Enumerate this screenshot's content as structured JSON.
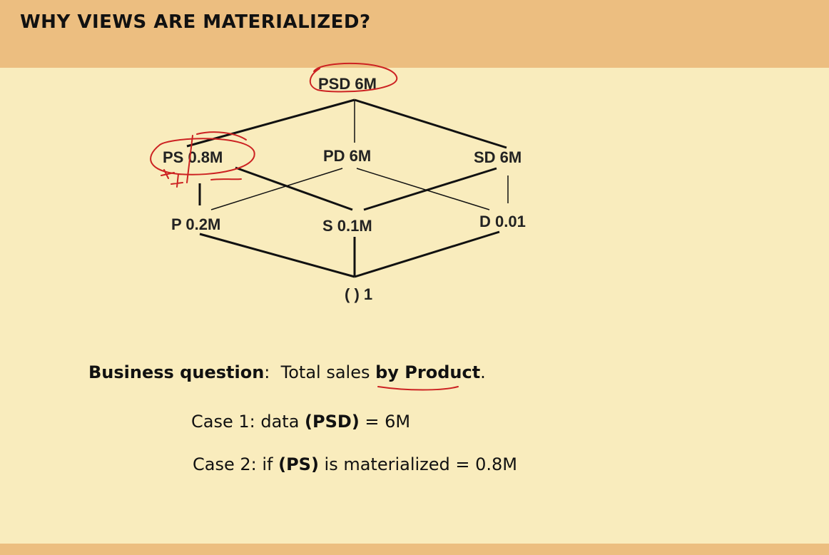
{
  "slide": {
    "title": "WHY VIEWS ARE MATERIALIZED?"
  },
  "lattice": {
    "nodes": {
      "psd": "PSD  6M",
      "ps": "PS  0.8M",
      "pd": "PD  6M",
      "sd": "SD  6M",
      "p": "P 0.2M",
      "s": "S  0.1M",
      "d": "D  0.01",
      "none": "( )  1"
    }
  },
  "question": {
    "label": "Business question",
    "colon": ":",
    "text_before": "Total sales ",
    "emphasis": "by Product",
    "period": "."
  },
  "cases": {
    "case1_prefix": "Case 1: data ",
    "case1_bold": "(PSD)",
    "case1_suffix": " = 6M",
    "case2_prefix": "Case 2: if ",
    "case2_bold": "(PS)",
    "case2_suffix": " is materialized = 0.8M"
  },
  "colors": {
    "header": "#ecbe80",
    "background": "#f9ecbd",
    "annotation": "#cc2222"
  }
}
